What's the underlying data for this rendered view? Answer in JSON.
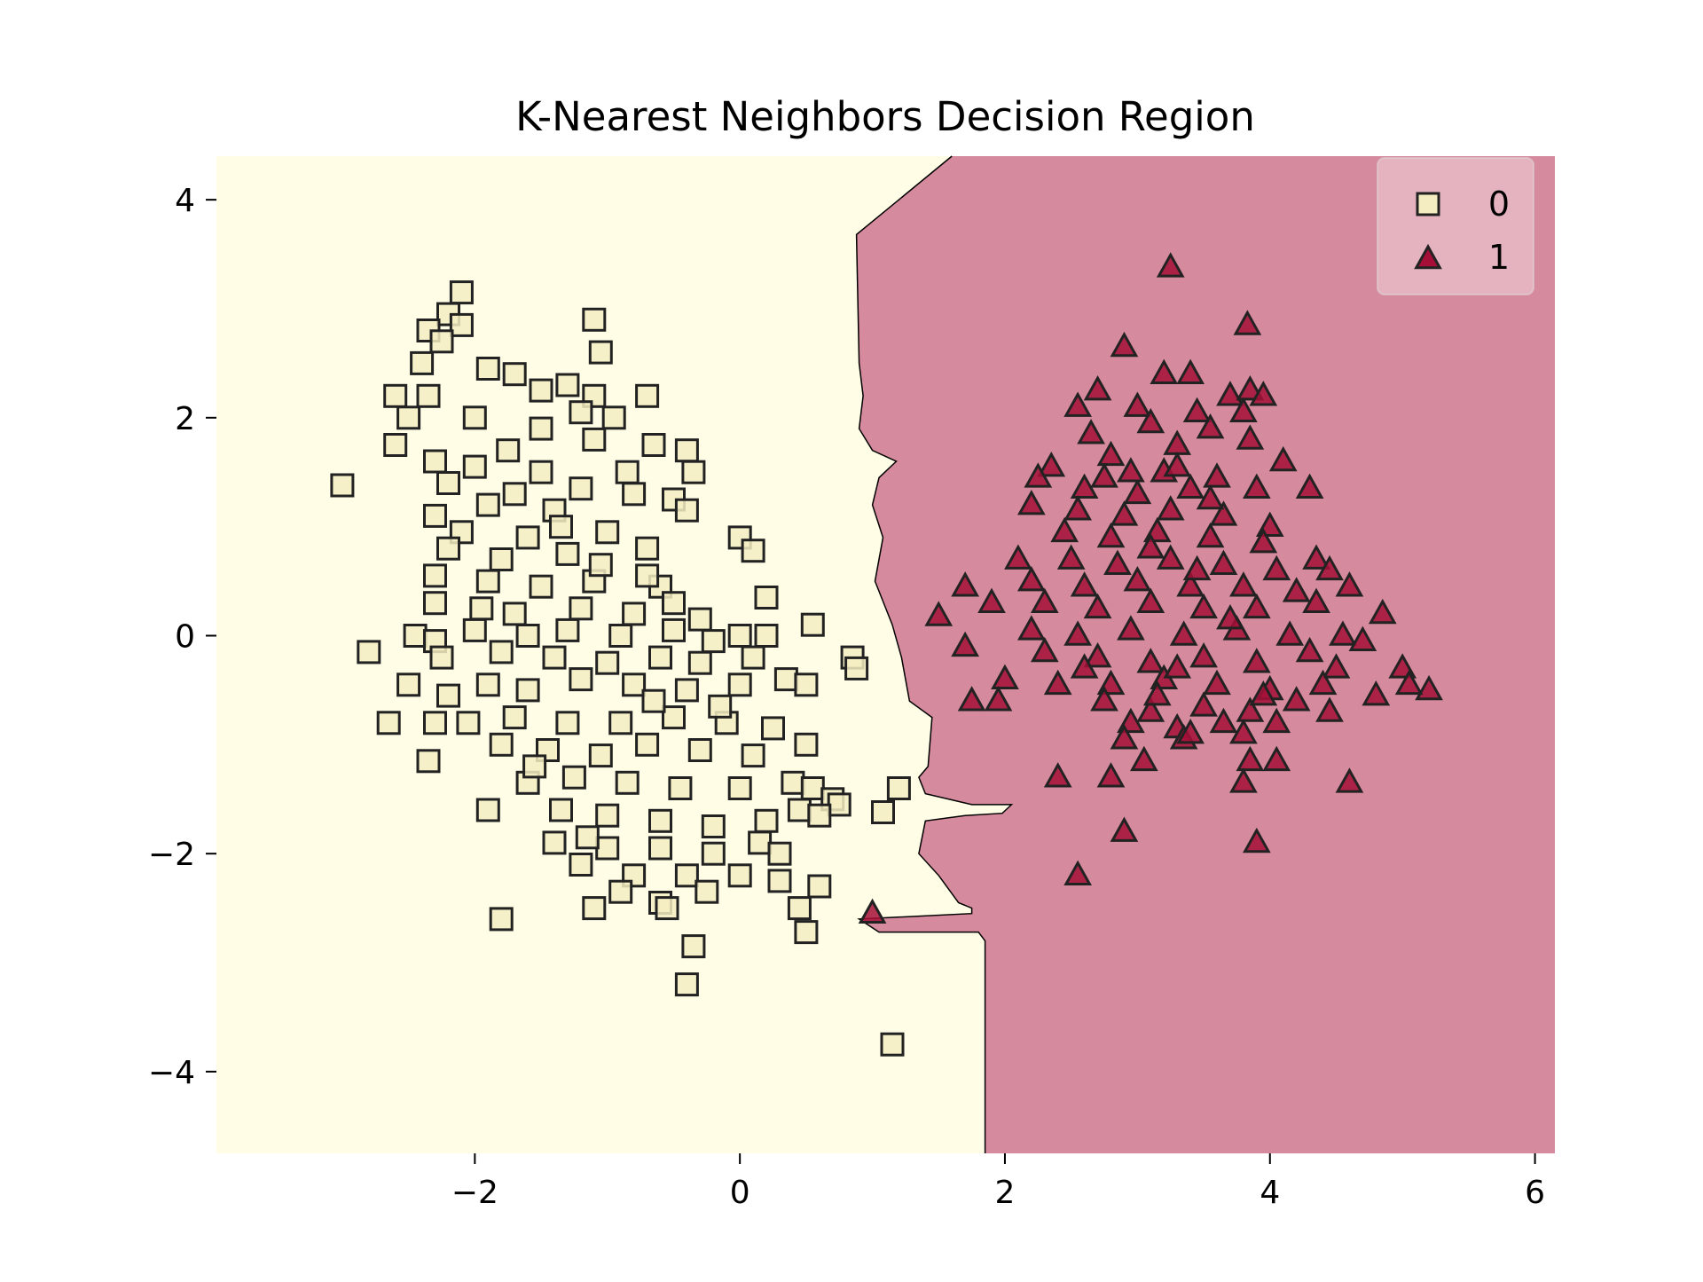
{
  "chart_data": {
    "type": "scatter",
    "title": "K-Nearest Neighbors Decision Region",
    "xlabel": "",
    "ylabel": "",
    "xlim": [
      -3.95,
      6.15
    ],
    "ylim": [
      -4.75,
      4.4
    ],
    "xticks": [
      -2,
      0,
      2,
      4,
      6
    ],
    "yticks": [
      -4,
      -2,
      0,
      2,
      4
    ],
    "xtick_labels": [
      "−2",
      "0",
      "2",
      "4",
      "6"
    ],
    "ytick_labels": [
      "−4",
      "−2",
      "0",
      "2",
      "4"
    ],
    "grid": false,
    "legend_position": "top-right",
    "region_colors": {
      "0": "#FFFDE6",
      "1": "#D68A9D"
    },
    "decision_boundary": [
      [
        1.6,
        4.4
      ],
      [
        0.88,
        3.68
      ],
      [
        0.9,
        2.5
      ],
      [
        0.93,
        2.2
      ],
      [
        0.9,
        1.9
      ],
      [
        1.0,
        1.7
      ],
      [
        1.18,
        1.6
      ],
      [
        1.05,
        1.45
      ],
      [
        1.0,
        1.2
      ],
      [
        1.08,
        0.9
      ],
      [
        1.02,
        0.5
      ],
      [
        1.15,
        0.1
      ],
      [
        1.22,
        -0.2
      ],
      [
        1.28,
        -0.6
      ],
      [
        1.45,
        -0.75
      ],
      [
        1.42,
        -1.2
      ],
      [
        1.35,
        -1.3
      ],
      [
        1.4,
        -1.45
      ],
      [
        1.75,
        -1.55
      ],
      [
        2.05,
        -1.55
      ],
      [
        1.98,
        -1.63
      ],
      [
        1.7,
        -1.65
      ],
      [
        1.4,
        -1.7
      ],
      [
        1.35,
        -2.0
      ],
      [
        1.5,
        -2.2
      ],
      [
        1.65,
        -2.45
      ],
      [
        1.75,
        -2.5
      ],
      [
        1.75,
        -2.55
      ],
      [
        0.9,
        -2.6
      ],
      [
        1.05,
        -2.72
      ],
      [
        1.8,
        -2.72
      ],
      [
        1.85,
        -2.8
      ],
      [
        1.85,
        -4.75
      ]
    ],
    "series": [
      {
        "name": "0",
        "marker": "square",
        "color": "#F5EDC2",
        "points": [
          [
            -2.1,
            3.15
          ],
          [
            -2.2,
            2.95
          ],
          [
            -1.1,
            2.9
          ],
          [
            -2.1,
            2.85
          ],
          [
            -2.35,
            2.8
          ],
          [
            -2.25,
            2.7
          ],
          [
            -1.05,
            2.6
          ],
          [
            -2.4,
            2.5
          ],
          [
            -1.9,
            2.45
          ],
          [
            -1.7,
            2.4
          ],
          [
            -2.6,
            2.2
          ],
          [
            -2.35,
            2.2
          ],
          [
            -1.1,
            2.2
          ],
          [
            -0.7,
            2.2
          ],
          [
            -1.5,
            2.25
          ],
          [
            -2.5,
            2.0
          ],
          [
            -2.0,
            2.0
          ],
          [
            -1.2,
            2.05
          ],
          [
            -0.95,
            2.0
          ],
          [
            -2.6,
            1.75
          ],
          [
            -2.3,
            1.6
          ],
          [
            -1.1,
            1.8
          ],
          [
            -0.65,
            1.75
          ],
          [
            -0.4,
            1.7
          ],
          [
            -2.0,
            1.55
          ],
          [
            -1.5,
            1.5
          ],
          [
            -0.85,
            1.5
          ],
          [
            -0.35,
            1.5
          ],
          [
            -2.2,
            1.4
          ],
          [
            -1.7,
            1.3
          ],
          [
            -1.2,
            1.35
          ],
          [
            -0.8,
            1.3
          ],
          [
            -2.3,
            1.1
          ],
          [
            -1.9,
            1.2
          ],
          [
            -1.4,
            1.15
          ],
          [
            -0.5,
            1.25
          ],
          [
            -0.4,
            1.15
          ],
          [
            -2.1,
            0.95
          ],
          [
            -1.6,
            0.9
          ],
          [
            -1.0,
            0.95
          ],
          [
            0.0,
            0.9
          ],
          [
            0.1,
            0.78
          ],
          [
            -2.2,
            0.8
          ],
          [
            -1.8,
            0.7
          ],
          [
            -1.3,
            0.75
          ],
          [
            -0.7,
            0.8
          ],
          [
            -2.3,
            0.55
          ],
          [
            -1.9,
            0.5
          ],
          [
            -1.5,
            0.45
          ],
          [
            -1.1,
            0.5
          ],
          [
            -0.6,
            0.45
          ],
          [
            -2.3,
            0.3
          ],
          [
            -1.95,
            0.25
          ],
          [
            -1.7,
            0.2
          ],
          [
            -1.2,
            0.25
          ],
          [
            -0.8,
            0.2
          ],
          [
            -0.5,
            0.3
          ],
          [
            0.2,
            0.35
          ],
          [
            -2.0,
            0.05
          ],
          [
            -1.6,
            0.0
          ],
          [
            -1.3,
            0.05
          ],
          [
            -0.9,
            0.0
          ],
          [
            -0.5,
            0.05
          ],
          [
            0.0,
            0.0
          ],
          [
            0.2,
            0.0
          ],
          [
            -2.45,
            0.0
          ],
          [
            -2.3,
            -0.05
          ],
          [
            -2.8,
            -0.15
          ],
          [
            -2.25,
            -0.2
          ],
          [
            -1.8,
            -0.15
          ],
          [
            -1.4,
            -0.2
          ],
          [
            -1.0,
            -0.25
          ],
          [
            -0.6,
            -0.2
          ],
          [
            -0.3,
            -0.25
          ],
          [
            0.1,
            -0.2
          ],
          [
            0.55,
            0.1
          ],
          [
            0.85,
            -0.2
          ],
          [
            0.88,
            -0.3
          ],
          [
            -2.5,
            -0.45
          ],
          [
            -2.2,
            -0.55
          ],
          [
            -1.9,
            -0.45
          ],
          [
            -1.6,
            -0.5
          ],
          [
            -1.2,
            -0.4
          ],
          [
            -0.8,
            -0.45
          ],
          [
            -0.4,
            -0.5
          ],
          [
            0.0,
            -0.45
          ],
          [
            0.35,
            -0.4
          ],
          [
            0.5,
            -0.45
          ],
          [
            -2.05,
            -0.8
          ],
          [
            -1.7,
            -0.75
          ],
          [
            -1.3,
            -0.8
          ],
          [
            -0.9,
            -0.8
          ],
          [
            -0.5,
            -0.75
          ],
          [
            -0.1,
            -0.8
          ],
          [
            0.25,
            -0.85
          ],
          [
            -2.65,
            -0.8
          ],
          [
            -2.3,
            -0.8
          ],
          [
            -1.8,
            -1.0
          ],
          [
            -1.45,
            -1.05
          ],
          [
            -1.05,
            -1.1
          ],
          [
            -0.7,
            -1.0
          ],
          [
            -0.3,
            -1.05
          ],
          [
            0.1,
            -1.1
          ],
          [
            0.5,
            -1.0
          ],
          [
            -2.35,
            -1.15
          ],
          [
            -1.6,
            -1.35
          ],
          [
            -1.25,
            -1.3
          ],
          [
            -0.85,
            -1.35
          ],
          [
            -0.45,
            -1.4
          ],
          [
            0.0,
            -1.4
          ],
          [
            0.4,
            -1.35
          ],
          [
            0.55,
            -1.4
          ],
          [
            0.7,
            -1.5
          ],
          [
            0.75,
            -1.55
          ],
          [
            0.45,
            -1.6
          ],
          [
            1.2,
            -1.4
          ],
          [
            1.08,
            -1.62
          ],
          [
            -1.9,
            -1.6
          ],
          [
            -1.35,
            -1.6
          ],
          [
            -1.0,
            -1.65
          ],
          [
            -0.6,
            -1.7
          ],
          [
            -0.2,
            -1.75
          ],
          [
            0.2,
            -1.7
          ],
          [
            0.6,
            -1.65
          ],
          [
            -1.4,
            -1.9
          ],
          [
            -1.0,
            -1.95
          ],
          [
            -0.6,
            -1.95
          ],
          [
            -0.2,
            -2.0
          ],
          [
            0.15,
            -1.9
          ],
          [
            -1.2,
            -2.1
          ],
          [
            -0.8,
            -2.2
          ],
          [
            -0.4,
            -2.2
          ],
          [
            0.0,
            -2.2
          ],
          [
            0.3,
            -2.0
          ],
          [
            -0.9,
            -2.35
          ],
          [
            -0.6,
            -2.45
          ],
          [
            -0.25,
            -2.35
          ],
          [
            0.3,
            -2.25
          ],
          [
            0.6,
            -2.3
          ],
          [
            -1.1,
            -2.5
          ],
          [
            -0.55,
            -2.5
          ],
          [
            0.45,
            -2.5
          ],
          [
            -1.8,
            -2.6
          ],
          [
            0.5,
            -2.72
          ],
          [
            -0.35,
            -2.85
          ],
          [
            -0.4,
            -3.2
          ],
          [
            1.15,
            -3.75
          ],
          [
            -3.0,
            1.38
          ],
          [
            -1.3,
            2.3
          ],
          [
            -1.5,
            1.9
          ],
          [
            -1.75,
            1.7
          ],
          [
            -1.35,
            1.0
          ],
          [
            -1.05,
            0.65
          ],
          [
            -0.7,
            0.55
          ],
          [
            -0.3,
            0.15
          ],
          [
            -0.2,
            -0.05
          ],
          [
            -0.65,
            -0.6
          ],
          [
            -0.15,
            -0.65
          ],
          [
            -1.55,
            -1.2
          ],
          [
            -1.15,
            -1.85
          ]
        ]
      },
      {
        "name": "1",
        "marker": "triangle",
        "color": "#A50F37",
        "points": [
          [
            3.25,
            3.38
          ],
          [
            3.83,
            2.85
          ],
          [
            2.9,
            2.65
          ],
          [
            3.2,
            2.4
          ],
          [
            3.4,
            2.4
          ],
          [
            2.7,
            2.25
          ],
          [
            3.7,
            2.2
          ],
          [
            3.85,
            2.25
          ],
          [
            3.95,
            2.2
          ],
          [
            2.55,
            2.1
          ],
          [
            3.0,
            2.1
          ],
          [
            3.45,
            2.05
          ],
          [
            3.8,
            2.05
          ],
          [
            2.65,
            1.85
          ],
          [
            3.1,
            1.95
          ],
          [
            3.55,
            1.9
          ],
          [
            3.85,
            1.8
          ],
          [
            2.8,
            1.65
          ],
          [
            3.3,
            1.75
          ],
          [
            4.1,
            1.6
          ],
          [
            2.35,
            1.55
          ],
          [
            2.75,
            1.45
          ],
          [
            3.2,
            1.5
          ],
          [
            3.6,
            1.45
          ],
          [
            2.25,
            1.45
          ],
          [
            2.6,
            1.35
          ],
          [
            3.0,
            1.3
          ],
          [
            3.4,
            1.35
          ],
          [
            3.9,
            1.35
          ],
          [
            4.3,
            1.35
          ],
          [
            2.2,
            1.2
          ],
          [
            2.55,
            1.15
          ],
          [
            2.9,
            1.1
          ],
          [
            3.25,
            1.15
          ],
          [
            3.65,
            1.1
          ],
          [
            4.0,
            1.0
          ],
          [
            2.45,
            0.95
          ],
          [
            2.8,
            0.9
          ],
          [
            3.15,
            0.95
          ],
          [
            3.55,
            0.9
          ],
          [
            3.95,
            0.85
          ],
          [
            2.1,
            0.7
          ],
          [
            2.5,
            0.7
          ],
          [
            2.85,
            0.65
          ],
          [
            3.25,
            0.7
          ],
          [
            3.65,
            0.65
          ],
          [
            4.05,
            0.6
          ],
          [
            4.35,
            0.7
          ],
          [
            4.45,
            0.6
          ],
          [
            2.2,
            0.5
          ],
          [
            2.6,
            0.45
          ],
          [
            3.0,
            0.5
          ],
          [
            3.4,
            0.45
          ],
          [
            3.8,
            0.45
          ],
          [
            4.2,
            0.4
          ],
          [
            4.6,
            0.45
          ],
          [
            1.7,
            0.45
          ],
          [
            1.9,
            0.3
          ],
          [
            2.3,
            0.3
          ],
          [
            2.7,
            0.25
          ],
          [
            3.1,
            0.3
          ],
          [
            3.5,
            0.25
          ],
          [
            3.9,
            0.25
          ],
          [
            4.35,
            0.3
          ],
          [
            4.85,
            0.2
          ],
          [
            1.5,
            0.18
          ],
          [
            2.2,
            0.05
          ],
          [
            2.55,
            0.0
          ],
          [
            2.95,
            0.05
          ],
          [
            3.35,
            0.0
          ],
          [
            3.75,
            0.05
          ],
          [
            4.15,
            0.0
          ],
          [
            4.55,
            0.0
          ],
          [
            4.7,
            -0.05
          ],
          [
            1.7,
            -0.1
          ],
          [
            2.3,
            -0.15
          ],
          [
            2.7,
            -0.2
          ],
          [
            3.1,
            -0.25
          ],
          [
            3.5,
            -0.2
          ],
          [
            3.9,
            -0.25
          ],
          [
            4.3,
            -0.15
          ],
          [
            4.5,
            -0.3
          ],
          [
            5.0,
            -0.3
          ],
          [
            5.2,
            -0.5
          ],
          [
            2.0,
            -0.4
          ],
          [
            2.4,
            -0.45
          ],
          [
            2.8,
            -0.45
          ],
          [
            3.2,
            -0.4
          ],
          [
            3.6,
            -0.45
          ],
          [
            4.0,
            -0.5
          ],
          [
            4.4,
            -0.45
          ],
          [
            4.8,
            -0.55
          ],
          [
            5.05,
            -0.45
          ],
          [
            1.75,
            -0.6
          ],
          [
            1.95,
            -0.6
          ],
          [
            2.75,
            -0.6
          ],
          [
            3.1,
            -0.7
          ],
          [
            3.5,
            -0.65
          ],
          [
            3.85,
            -0.7
          ],
          [
            4.2,
            -0.6
          ],
          [
            2.95,
            -0.8
          ],
          [
            3.3,
            -0.85
          ],
          [
            3.65,
            -0.8
          ],
          [
            4.05,
            -0.8
          ],
          [
            2.9,
            -0.95
          ],
          [
            3.35,
            -0.95
          ],
          [
            3.8,
            -0.9
          ],
          [
            3.05,
            -1.15
          ],
          [
            3.4,
            -0.9
          ],
          [
            3.85,
            -1.15
          ],
          [
            4.05,
            -1.15
          ],
          [
            2.4,
            -1.3
          ],
          [
            2.8,
            -1.3
          ],
          [
            3.8,
            -1.35
          ],
          [
            4.6,
            -1.35
          ],
          [
            2.9,
            -1.8
          ],
          [
            3.9,
            -1.9
          ],
          [
            2.55,
            -2.2
          ],
          [
            1.0,
            -2.55
          ],
          [
            3.3,
            1.55
          ],
          [
            3.1,
            0.8
          ],
          [
            3.45,
            0.6
          ],
          [
            3.7,
            0.15
          ],
          [
            3.3,
            -0.3
          ],
          [
            2.6,
            -0.3
          ],
          [
            3.95,
            -0.55
          ],
          [
            4.45,
            -0.7
          ],
          [
            3.55,
            1.25
          ],
          [
            2.95,
            1.5
          ],
          [
            3.15,
            -0.55
          ]
        ]
      }
    ]
  }
}
